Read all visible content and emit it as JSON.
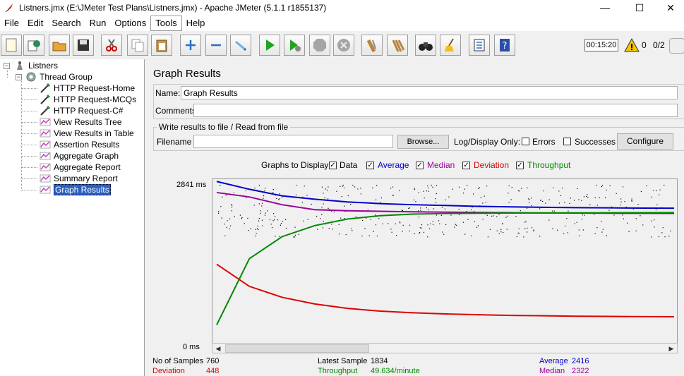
{
  "window": {
    "title": "Listners.jmx (E:\\JMeter Test Plans\\Listners.jmx) - Apache JMeter (5.1.1 r1855137)",
    "minimize": "—",
    "maximize": "☐",
    "close": "✕"
  },
  "menu": [
    "File",
    "Edit",
    "Search",
    "Run",
    "Options",
    "Tools",
    "Help"
  ],
  "toolbar": {
    "timer": "00:15:20",
    "warnings": "0",
    "threads": "0/2",
    "buttons": [
      "new-icon",
      "templates-icon",
      "open-icon",
      "save-icon",
      "cut-icon",
      "copy-icon",
      "paste-icon",
      "expand-icon",
      "collapse-icon",
      "toggle-icon",
      "start-icon",
      "start-no-pauses-icon",
      "stop-icon",
      "shutdown-icon",
      "clear-icon",
      "clear-all-icon",
      "search-icon",
      "reset-search-icon",
      "function-helper-icon",
      "help-icon"
    ]
  },
  "tree": {
    "root": "Listners",
    "group": "Thread Group",
    "items": [
      "HTTP Request-Home",
      "HTTP Request-MCQs",
      "HTTP Request-C#",
      "View Results Tree",
      "View Results in Table",
      "Assertion Results",
      "Aggregate Graph",
      "Aggregate Report",
      "Summary Report",
      "Graph Results"
    ],
    "selected": "Graph Results"
  },
  "panel": {
    "title": "Graph Results",
    "name_label": "Name:",
    "name_value": "Graph Results",
    "comments_label": "Comments:",
    "comments_value": "",
    "file_legend": "Write results to file / Read from file",
    "filename_label": "Filename",
    "filename_value": "",
    "browse": "Browse...",
    "log_display_only": "Log/Display Only:",
    "errors": "Errors",
    "successes": "Successes",
    "configure": "Configure",
    "graphs_to_display": "Graphs to Display",
    "series": [
      {
        "label": "Data",
        "color": "#000000",
        "checked": true
      },
      {
        "label": "Average",
        "color": "#0000cc",
        "checked": true
      },
      {
        "label": "Median",
        "color": "#990099",
        "checked": true
      },
      {
        "label": "Deviation",
        "color": "#dd0000",
        "checked": true
      },
      {
        "label": "Throughput",
        "color": "#008800",
        "checked": true
      }
    ],
    "ymax_label": "2841  ms",
    "ymin_label": "0  ms"
  },
  "stats": {
    "samples_label": "No of Samples",
    "samples_value": "760",
    "latest_label": "Latest Sample",
    "latest_value": "1834",
    "average_label": "Average",
    "average_value": "2416",
    "deviation_label": "Deviation",
    "deviation_value": "448",
    "throughput_label": "Throughput",
    "throughput_value": "49.634/minute",
    "median_label": "Median",
    "median_value": "2322"
  },
  "chart_data": {
    "type": "line",
    "ylim": [
      0,
      2841
    ],
    "series": [
      {
        "name": "Average",
        "values": [
          2900,
          2760,
          2640,
          2580,
          2530,
          2500,
          2480,
          2465,
          2450,
          2440,
          2432,
          2426,
          2422,
          2418,
          2416
        ]
      },
      {
        "name": "Median",
        "values": [
          2700,
          2620,
          2480,
          2390,
          2370,
          2360,
          2350,
          2345,
          2340,
          2335,
          2330,
          2328,
          2325,
          2323,
          2322
        ]
      },
      {
        "name": "Deviation",
        "values": [
          1400,
          1000,
          800,
          680,
          600,
          550,
          520,
          500,
          485,
          472,
          465,
          458,
          454,
          450,
          448
        ]
      },
      {
        "name": "Throughput",
        "values": [
          300,
          1500,
          1900,
          2100,
          2220,
          2280,
          2310,
          2320,
          2325,
          2328,
          2330,
          2332,
          2334,
          2335,
          2336
        ]
      }
    ]
  }
}
